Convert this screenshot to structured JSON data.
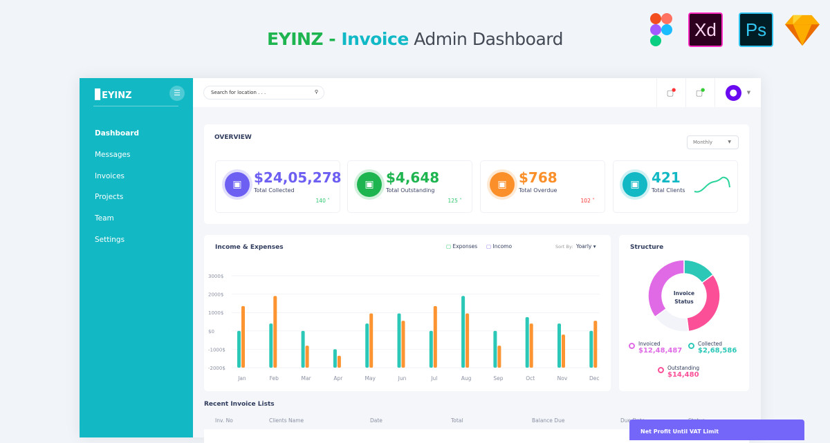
{
  "banner": {
    "brand": "EYINZ",
    "dash": " - ",
    "word1": "Invoice",
    "rest": " Admin Dashboard",
    "tools": [
      "figma-icon",
      "Xd",
      "Ps",
      "sketch-icon"
    ]
  },
  "sidebar": {
    "logo": "EYINZ",
    "items": [
      "Dashboard",
      "Messages",
      "Invoices",
      "Projects",
      "Team",
      "Settings"
    ],
    "color": "#12b8c4"
  },
  "header": {
    "search_placeholder": "Search for location . . ."
  },
  "overview": {
    "title": "OVERVIEW",
    "period": "Monthly",
    "stats": [
      {
        "value": "$24,05,278",
        "label": "Total Collected",
        "count": "140",
        "trend": "up",
        "color": "#6c5ff2"
      },
      {
        "value": "$4,648",
        "label": "Total Outstanding",
        "count": "125",
        "trend": "up",
        "color": "#1eb44f"
      },
      {
        "value": "$768",
        "label": "Total Overdue",
        "count": "102",
        "trend": "down",
        "color": "#fb8f2a"
      },
      {
        "value": "421",
        "label": "Total Clients",
        "count": "",
        "trend": "",
        "color": "#12b8c4"
      }
    ]
  },
  "income": {
    "title": "Income & Expenses",
    "legend": [
      "Exponses",
      "Incomo"
    ],
    "sort_label": "Sort By:",
    "sort_value": "Yoarly"
  },
  "chart_data": [
    {
      "type": "bar",
      "title": "Income & Expenses",
      "categories": [
        "Jan",
        "Feb",
        "Mar",
        "Apr",
        "May",
        "Jun",
        "Jul",
        "Aug",
        "Sep",
        "Oct",
        "Nov",
        "Dec"
      ],
      "yticks": [
        "3000$",
        "2000$",
        "1000$",
        "$0",
        "-1000$",
        "-2000$"
      ],
      "ylim": [
        -2000,
        3000
      ],
      "series": [
        {
          "name": "Exponses",
          "color": "#2bc8b8",
          "values": [
            0,
            400,
            0,
            -1000,
            400,
            950,
            0,
            1900,
            0,
            750,
            400,
            0
          ]
        },
        {
          "name": "Incomo",
          "color": "#fb9431",
          "values": [
            1350,
            1900,
            -800,
            -1350,
            950,
            550,
            1350,
            950,
            -800,
            400,
            -200,
            550
          ]
        }
      ]
    },
    {
      "type": "pie",
      "title": "Structure",
      "center_label": [
        "Invoice",
        "Status"
      ],
      "slices": [
        {
          "name": "Collected",
          "value": 15,
          "color": "#2bc8b8"
        },
        {
          "name": "Outstanding",
          "value": 33,
          "color": "#fb4f97"
        },
        {
          "name": "",
          "value": 17,
          "color": "#f2f4f9"
        },
        {
          "name": "Invoiced",
          "value": 35,
          "color": "#e06ae6"
        }
      ]
    }
  ],
  "structure": {
    "title": "Structure",
    "legend": [
      {
        "label": "Invoiced",
        "value": "$12,48,487",
        "color": "#e06ae6"
      },
      {
        "label": "Collected",
        "value": "$2,68,586",
        "color": "#2bc8b8"
      },
      {
        "label": "Outstanding",
        "value": "$14,480",
        "color": "#fb4f97"
      }
    ]
  },
  "recent": {
    "title": "Recent Invoice Lists",
    "columns": [
      "Inv. No",
      "Clients Name",
      "Date",
      "Total",
      "Balance Due",
      "Due Date",
      "Status"
    ]
  },
  "popup": {
    "title": "Net Profit Until VAT Limit"
  }
}
